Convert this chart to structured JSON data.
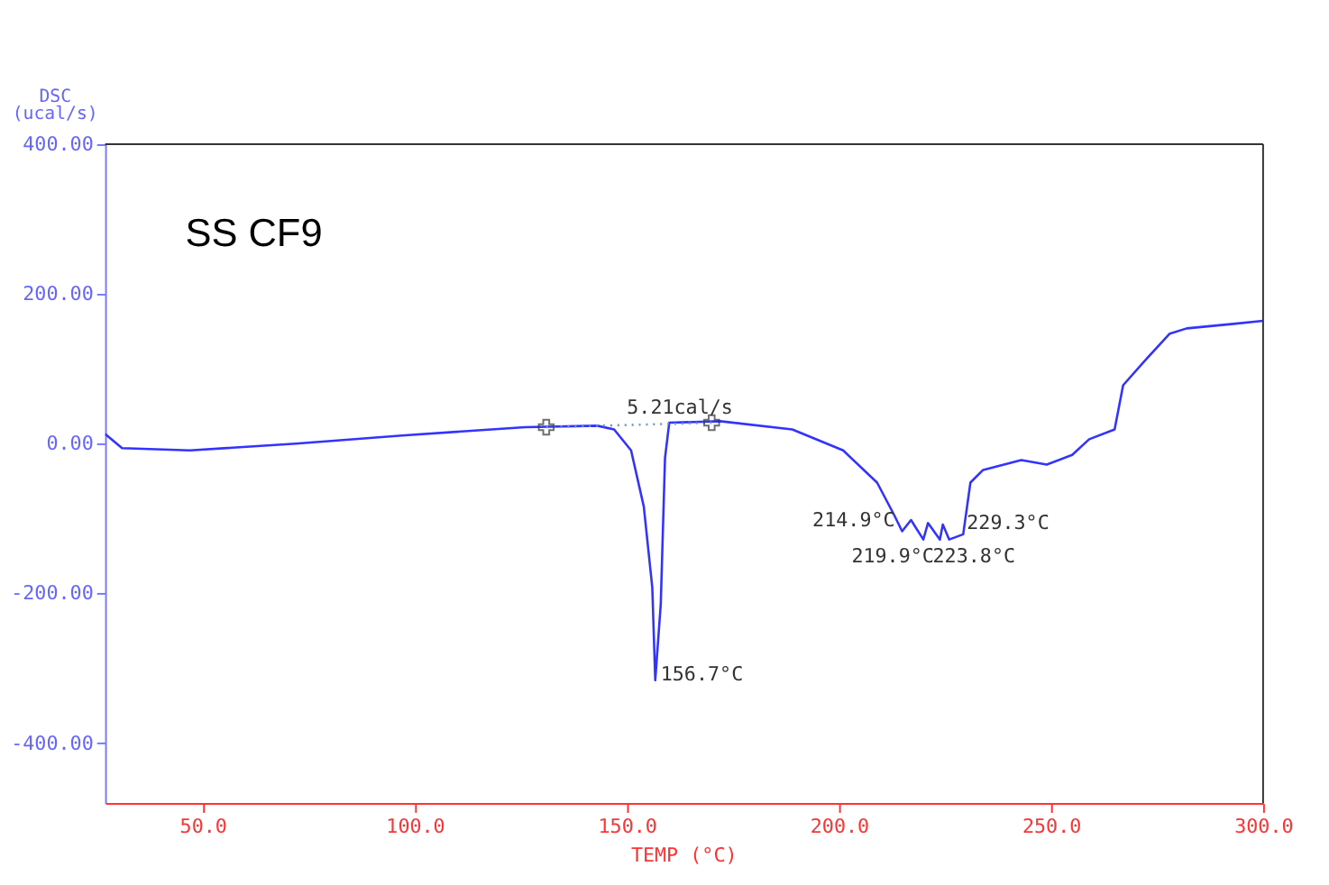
{
  "chart_data": {
    "type": "line",
    "xlabel": "TEMP  (°C)",
    "ylabel": "DSC\n(ucal/s)",
    "xlim": [
      27,
      300
    ],
    "ylim": [
      -480,
      400
    ],
    "xticks": [
      {
        "value": 50,
        "label": "50.0"
      },
      {
        "value": 100,
        "label": "100.0"
      },
      {
        "value": 150,
        "label": "150.0"
      },
      {
        "value": 200,
        "label": "200.0"
      },
      {
        "value": 250,
        "label": "250.0"
      },
      {
        "value": 300,
        "label": "300.0"
      }
    ],
    "yticks": [
      {
        "value": -400,
        "label": "-400.00"
      },
      {
        "value": -200,
        "label": "-200.00"
      },
      {
        "value": 0,
        "label": "0.00"
      },
      {
        "value": 200,
        "label": "200.00"
      },
      {
        "value": 400,
        "label": "400.00"
      }
    ],
    "series": [
      {
        "color": "#3333ff",
        "line_style": "solid",
        "x": [
          27,
          31,
          47,
          72,
          97,
          126,
          143,
          147,
          151,
          154,
          156,
          156.7,
          158,
          159,
          160,
          172,
          189,
          201,
          209,
          213,
          214.9,
          217,
          219.9,
          221,
          223.8,
          224.5,
          226,
          229.3,
          231,
          234,
          243,
          249,
          255,
          259,
          265,
          267,
          272,
          278,
          282,
          293,
          300
        ],
        "values": [
          13,
          -6,
          -9,
          0,
          11,
          22,
          24,
          19,
          -9,
          -84,
          -192,
          -316,
          -214,
          -19,
          28,
          30,
          19,
          -9,
          -52,
          -95,
          -117,
          -102,
          -128,
          -106,
          -128,
          -108,
          -128,
          -121,
          -52,
          -35,
          -22,
          -28,
          -15,
          6,
          19,
          78,
          110,
          147,
          154,
          160,
          164
        ]
      },
      {
        "type": "line",
        "color": "#6699cc",
        "line_style": "dotted",
        "x": [
          131,
          170
        ],
        "values": [
          22,
          28
        ]
      },
      {
        "type": "scatter",
        "color": "#333333",
        "marker": "cross",
        "x": [
          131,
          170
        ],
        "values": [
          22,
          28
        ]
      }
    ],
    "annotations": [
      {
        "text": "SS CF9"
      },
      {
        "text": "5.21cal/s",
        "x": 150,
        "y": 28
      },
      {
        "text": "156.7°C",
        "x": 156.7,
        "y": -316
      },
      {
        "text": "214.9°C",
        "x": 214.9,
        "y": -117
      },
      {
        "text": "219.9°C",
        "x": 219.9,
        "y": -128
      },
      {
        "text": "223.8°C",
        "x": 223.8,
        "y": -128
      },
      {
        "text": "229.3°C",
        "x": 229.3,
        "y": -121
      }
    ]
  }
}
